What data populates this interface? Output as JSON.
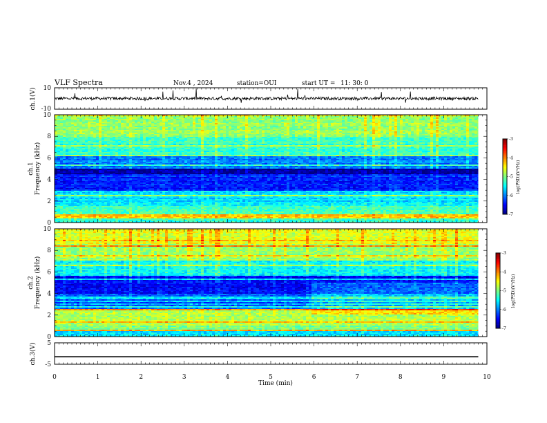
{
  "header": {
    "title": "VLF Spectra",
    "date": "Nov.4 , 2024",
    "station": "station=OUI",
    "start_label": "start UT =",
    "start_time": "11: 30: 0"
  },
  "chart_data": [
    {
      "id": "ch1-waveform",
      "type": "line",
      "ylabel": "ch.1(V)",
      "ylim": [
        -10,
        10
      ],
      "yticks": [
        "10",
        "-10"
      ],
      "baseline": 0,
      "note_values": "broadband waveform amplitude trace, mostly near 0 V with sharp spikes"
    },
    {
      "id": "ch1-spectrogram",
      "type": "heatmap",
      "ylabel_top": "ch.1",
      "ylabel": "Frequency (kHz)",
      "ylim": [
        0,
        10
      ],
      "yticks": [
        "0",
        "2",
        "4",
        "6",
        "8",
        "10"
      ],
      "colorbar": {
        "label": "log(PSD)(V²/Hz)",
        "range": [
          -7,
          -3
        ],
        "ticks": [
          "-3",
          "-4",
          "-5",
          "-6",
          "-7"
        ]
      },
      "bands": [
        {
          "range_khz": [
            0,
            0.4
          ],
          "level": -5.3
        },
        {
          "range_khz": [
            0.4,
            0.8
          ],
          "level": -4.3
        },
        {
          "range_khz": [
            0.8,
            1.6
          ],
          "level": -5.2
        },
        {
          "range_khz": [
            1.6,
            3.0
          ],
          "level": -5.6
        },
        {
          "range_khz": [
            3.0,
            4.2
          ],
          "level": -6.4
        },
        {
          "range_khz": [
            4.2,
            5.0
          ],
          "level": -6.9
        },
        {
          "range_khz": [
            5.0,
            6.2
          ],
          "level": -6.0
        },
        {
          "range_khz": [
            6.2,
            8.0
          ],
          "level": -5.3
        },
        {
          "range_khz": [
            8.0,
            10.0
          ],
          "level": -4.9
        }
      ]
    },
    {
      "id": "ch2-spectrogram",
      "type": "heatmap",
      "ylabel_top": "ch.2",
      "ylabel": "Frequency (kHz)",
      "ylim": [
        0,
        10
      ],
      "yticks": [
        "0",
        "2",
        "4",
        "6",
        "8",
        "10"
      ],
      "colorbar": {
        "label": "log(PSD)(V²/Hz)",
        "range": [
          -7,
          -3
        ],
        "ticks": [
          "-3",
          "-4",
          "-5",
          "-6",
          "-7"
        ]
      },
      "bands": [
        {
          "range_khz": [
            0,
            0.5
          ],
          "level": -5.6
        },
        {
          "range_khz": [
            0.5,
            1.0
          ],
          "level": -5.0
        },
        {
          "range_khz": [
            1.0,
            2.6
          ],
          "level": -4.8
        },
        {
          "range_khz": [
            2.6,
            4.0
          ],
          "level": -6.2
        },
        {
          "range_khz": [
            4.0,
            5.6
          ],
          "level": -6.5
        },
        {
          "range_khz": [
            5.6,
            7.0
          ],
          "level": -5.5
        },
        {
          "range_khz": [
            7.0,
            8.6
          ],
          "level": -4.9
        },
        {
          "range_khz": [
            8.6,
            10.0
          ],
          "level": -4.6
        }
      ]
    },
    {
      "id": "ch3-waveform",
      "type": "line",
      "ylabel": "ch.3(V)",
      "ylim": [
        -5,
        5
      ],
      "yticks": [
        "5",
        "-5"
      ],
      "x": [
        0,
        9.8
      ],
      "values": [
        -1.5,
        -1.5
      ]
    }
  ],
  "x_axis": {
    "label": "Time (min)",
    "xlim": [
      0,
      10
    ],
    "ticks": [
      "0",
      "1",
      "2",
      "3",
      "4",
      "5",
      "6",
      "7",
      "8",
      "9",
      "10"
    ],
    "data_end_min": 9.8
  }
}
